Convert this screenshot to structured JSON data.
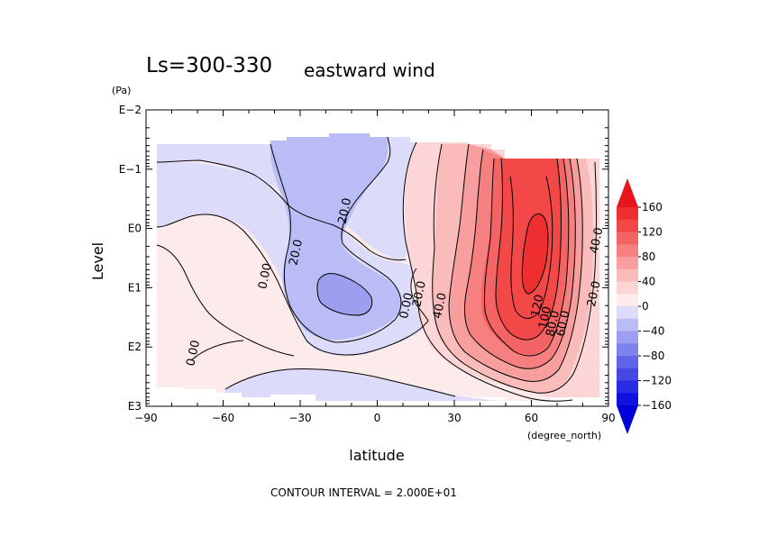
{
  "chart_data": {
    "type": "heatmap",
    "title": "Ls=300-330",
    "subtitle": "eastward wind",
    "xlabel": "latitude",
    "x_units": "(degree_north)",
    "ylabel": "Level",
    "y_units": "(Pa)",
    "xlim": [
      -90,
      90
    ],
    "ylim_log10": [
      -2,
      3
    ],
    "y_scale": "log, pressure increasing downward",
    "x_ticks": [
      "−90",
      "−60",
      "−30",
      "0",
      "30",
      "60",
      "90"
    ],
    "y_ticks": [
      "E−2",
      "E−1",
      "E0",
      "E1",
      "E2",
      "E3"
    ],
    "footer": "CONTOUR INTERVAL = 2.000E+01",
    "contour_interval": 20,
    "colorbar": {
      "ticks": [
        "160",
        "120",
        "80",
        "40",
        "0",
        "−40",
        "−80",
        "−120",
        "−160"
      ],
      "levels": [
        {
          "min": 160,
          "max": null,
          "color": "#e8141c"
        },
        {
          "min": 140,
          "max": 160,
          "color": "#ef2f2f"
        },
        {
          "min": 120,
          "max": 140,
          "color": "#f24848"
        },
        {
          "min": 100,
          "max": 120,
          "color": "#f56464"
        },
        {
          "min": 80,
          "max": 100,
          "color": "#f68080"
        },
        {
          "min": 60,
          "max": 80,
          "color": "#f89e9e"
        },
        {
          "min": 40,
          "max": 60,
          "color": "#fabbbb"
        },
        {
          "min": 20,
          "max": 40,
          "color": "#fcd6d6"
        },
        {
          "min": 0,
          "max": 20,
          "color": "#fdeaea"
        },
        {
          "min": -20,
          "max": 0,
          "color": "#dcdcfa"
        },
        {
          "min": -40,
          "max": -20,
          "color": "#babcf5"
        },
        {
          "min": -60,
          "max": -40,
          "color": "#9c9ff0"
        },
        {
          "min": -80,
          "max": -60,
          "color": "#7f82ec"
        },
        {
          "min": -100,
          "max": -80,
          "color": "#6064e9"
        },
        {
          "min": -120,
          "max": -100,
          "color": "#4548e5"
        },
        {
          "min": -140,
          "max": -120,
          "color": "#2a2ce3"
        },
        {
          "min": -160,
          "max": -140,
          "color": "#1212df"
        },
        {
          "min": null,
          "max": -160,
          "color": "#0000d8"
        }
      ]
    },
    "contour_labels": [
      {
        "text": "20.0",
        "lat": -13,
        "log_p": -0.3
      },
      {
        "text": "20.0",
        "lat": -32,
        "log_p": 0.4
      },
      {
        "text": "0.00",
        "lat": -44,
        "log_p": 0.8
      },
      {
        "text": "0.00",
        "lat": -72,
        "log_p": 2.1
      },
      {
        "text": "0.00",
        "lat": 11,
        "log_p": 1.3
      },
      {
        "text": "20.0",
        "lat": 16,
        "log_p": 1.1
      },
      {
        "text": "40.0",
        "lat": 24,
        "log_p": 1.3
      },
      {
        "text": "40.0",
        "lat": 85,
        "log_p": 0.2
      },
      {
        "text": "20.0",
        "lat": 84,
        "log_p": 1.1
      },
      {
        "text": "120",
        "lat": 62,
        "log_p": 1.3
      },
      {
        "text": "100",
        "lat": 65,
        "log_p": 1.5
      },
      {
        "text": "80.0",
        "lat": 68,
        "log_p": 1.6
      },
      {
        "text": "60.0",
        "lat": 72,
        "log_p": 1.6
      }
    ]
  }
}
